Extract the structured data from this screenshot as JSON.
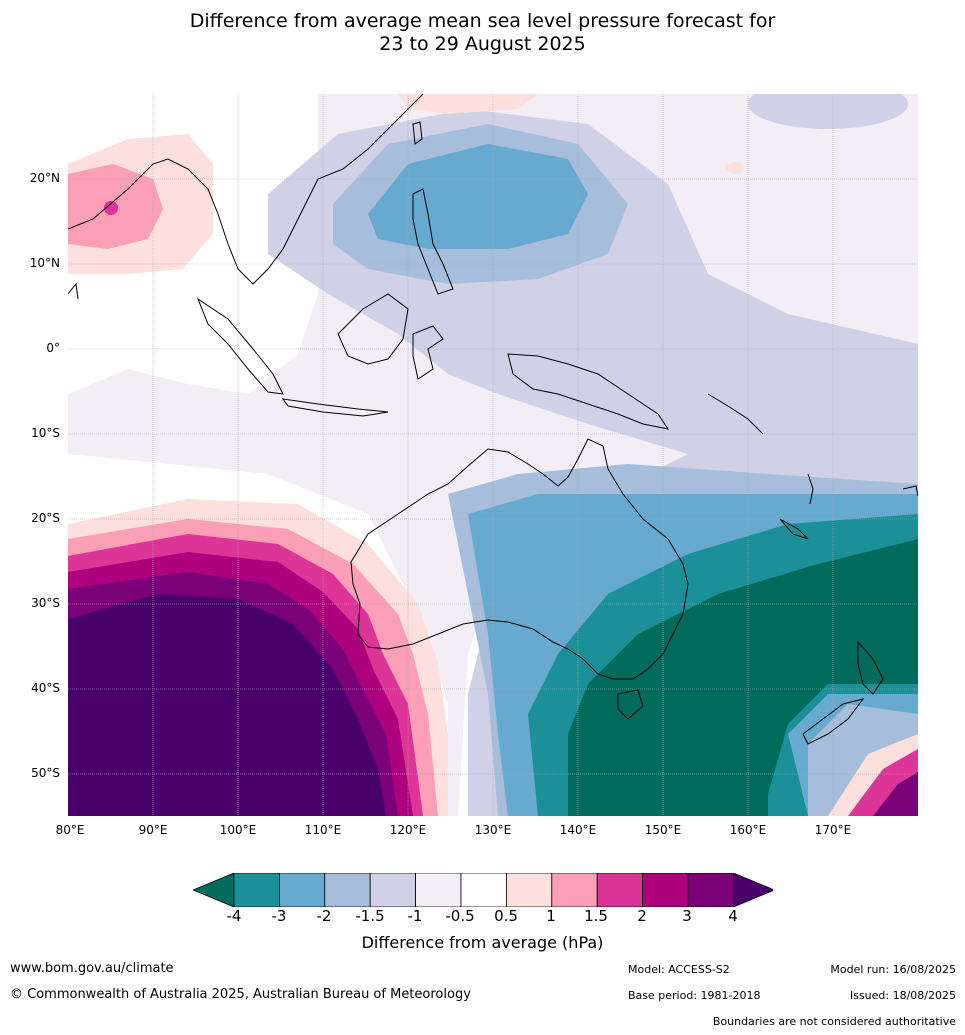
{
  "title": {
    "line1": "Difference from average mean sea level pressure forecast for",
    "line2": "23 to 29 August 2025"
  },
  "map": {
    "lat_labels": [
      "20°N",
      "10°N",
      "0°",
      "10°S",
      "20°S",
      "30°S",
      "40°S",
      "50°S"
    ],
    "lon_labels": [
      "80°E",
      "90°E",
      "100°E",
      "110°E",
      "120°E",
      "130°E",
      "140°E",
      "150°E",
      "160°E",
      "170°E"
    ],
    "extent": {
      "lon": [
        80,
        180
      ],
      "lat": [
        -55,
        30
      ]
    },
    "features": [
      "Australia",
      "New Zealand",
      "Indonesia",
      "Philippines",
      "Indochina",
      "India",
      "Tasmania"
    ]
  },
  "legend": {
    "ticks": [
      "-4",
      "-3",
      "-2",
      "-1.5",
      "-1",
      "-0.5",
      "0.5",
      "1",
      "1.5",
      "2",
      "3",
      "4"
    ],
    "colors": [
      "#006b5a",
      "#1b9099",
      "#67a9cf",
      "#a6bddb",
      "#d0d1e6",
      "#f3edf6",
      "#ffffff",
      "#fde0dd",
      "#fa9fb5",
      "#dd3497",
      "#ae017e",
      "#7a0177",
      "#49006a"
    ],
    "label": "Difference from average (hPa)"
  },
  "footer": {
    "website": "www.bom.gov.au/climate",
    "copyright": "© Commonwealth of Australia 2025, Australian Bureau of Meteorology",
    "model": "Model: ACCESS-S2",
    "base_period": "Base period: 1981-2018",
    "model_run": "Model run: 16/08/2025",
    "issued": "Issued: 18/08/2025",
    "disclaimer": "Boundaries are not considered authoritative"
  }
}
